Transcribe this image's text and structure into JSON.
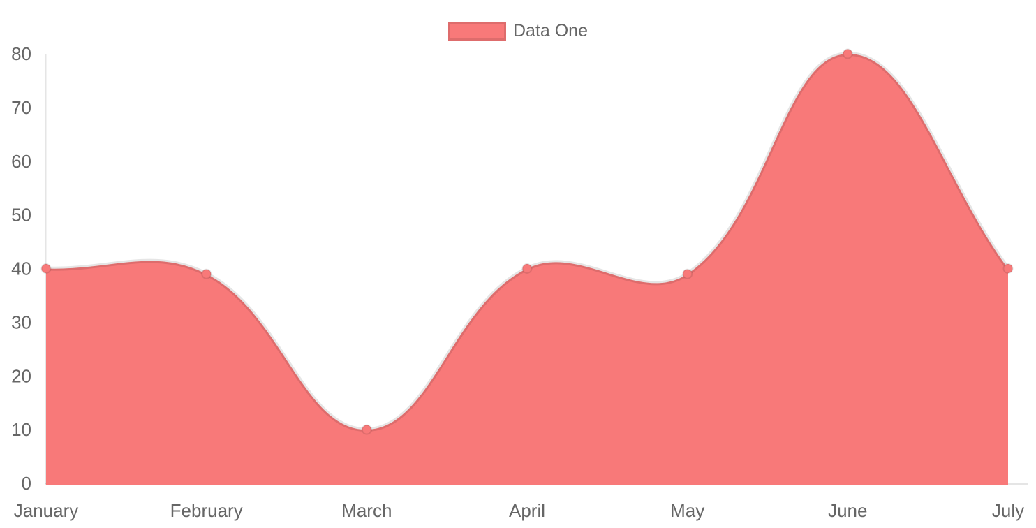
{
  "legend": {
    "items": [
      {
        "label": "Data One",
        "color": "#f87979"
      }
    ]
  },
  "chart_data": {
    "type": "area",
    "title": "",
    "xlabel": "",
    "ylabel": "",
    "categories": [
      "January",
      "February",
      "March",
      "April",
      "May",
      "June",
      "July"
    ],
    "series": [
      {
        "name": "Data One",
        "values": [
          40,
          39,
          10,
          40,
          39,
          80,
          40
        ]
      }
    ],
    "ylim": [
      0,
      80
    ],
    "y_ticks": [
      0,
      10,
      20,
      30,
      40,
      50,
      60,
      70,
      80
    ],
    "grid": false,
    "legend_position": "top",
    "line_tension": 0.4,
    "colors": {
      "fill": "#f87979",
      "line": "rgba(0,0,0,0.10)",
      "point_fill": "#f87979",
      "point_border": "rgba(0,0,0,0.10)",
      "axis_line": "rgba(0,0,0,0.10)",
      "tick_text": "#666666",
      "legend_text": "#666666",
      "background": "#ffffff"
    }
  }
}
